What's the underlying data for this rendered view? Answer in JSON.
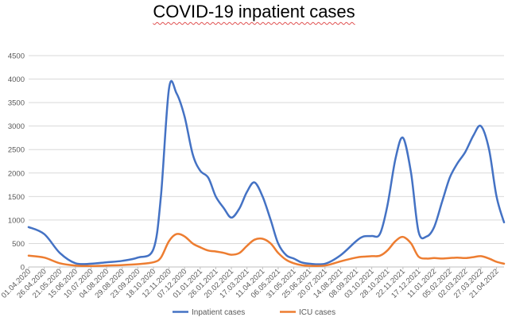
{
  "chart_data": {
    "type": "line",
    "title": "COVID-19 inpatient cases",
    "xlabel": "",
    "ylabel": "",
    "ylim": [
      0,
      4500
    ],
    "yticks": [
      0,
      500,
      1000,
      1500,
      2000,
      2500,
      3000,
      3500,
      4000,
      4500
    ],
    "grid": true,
    "legend_position": "bottom",
    "xticks": [
      "01.04.2020",
      "26.04.2020",
      "21.05.2020",
      "15.06.2020",
      "10.07.2020",
      "04.08.2020",
      "29.08.2020",
      "23.09.2020",
      "18.10.2020",
      "12.11.2020",
      "07.12.2020",
      "01.01.2021",
      "26.01.2021",
      "20.02.2021",
      "17.03.2021",
      "11.04.2021",
      "06.05.2021",
      "31.05.2021",
      "25.06.2021",
      "20.07.2021",
      "14.08.2021",
      "08.09.2021",
      "03.10.2021",
      "28.10.2021",
      "22.11.2021",
      "17.12.2021",
      "11.01.2022",
      "05.02.2022",
      "02.03.2022",
      "27.03.2022",
      "21.04.2022"
    ],
    "x": [
      "01.04.2020",
      "26.04.2020",
      "21.05.2020",
      "15.06.2020",
      "10.07.2020",
      "04.08.2020",
      "29.08.2020",
      "23.09.2020",
      "18.10.2020",
      "30.10.2020",
      "12.11.2020",
      "24.11.2020",
      "07.12.2020",
      "20.12.2020",
      "01.01.2021",
      "14.01.2021",
      "26.01.2021",
      "08.02.2021",
      "20.02.2021",
      "05.03.2021",
      "17.03.2021",
      "29.03.2021",
      "11.04.2021",
      "24.04.2021",
      "06.05.2021",
      "19.05.2021",
      "31.05.2021",
      "12.06.2021",
      "25.06.2021",
      "20.07.2021",
      "14.08.2021",
      "08.09.2021",
      "20.09.2021",
      "03.10.2021",
      "16.10.2021",
      "28.10.2021",
      "10.11.2021",
      "22.11.2021",
      "05.12.2021",
      "17.12.2021",
      "30.12.2021",
      "11.01.2022",
      "24.01.2022",
      "05.02.2022",
      "17.02.2022",
      "02.03.2022",
      "15.03.2022",
      "27.03.2022",
      "09.04.2022",
      "21.04.2022",
      "03.05.2022"
    ],
    "series": [
      {
        "name": "Inpatient cases",
        "color": "#4472c4",
        "values": [
          850,
          700,
          300,
          80,
          70,
          100,
          130,
          200,
          380,
          1500,
          3800,
          3700,
          3200,
          2400,
          2050,
          1900,
          1500,
          1250,
          1050,
          1250,
          1600,
          1800,
          1500,
          1000,
          500,
          250,
          180,
          100,
          70,
          70,
          250,
          550,
          650,
          660,
          700,
          1300,
          2300,
          2750,
          2000,
          750,
          650,
          850,
          1400,
          1900,
          2200,
          2450,
          2800,
          3000,
          2500,
          1500,
          950
        ]
      },
      {
        "name": "ICU cases",
        "color": "#ed7d31",
        "values": [
          240,
          200,
          80,
          30,
          20,
          30,
          40,
          60,
          100,
          200,
          550,
          700,
          650,
          500,
          420,
          350,
          330,
          300,
          260,
          300,
          450,
          580,
          600,
          500,
          300,
          150,
          80,
          40,
          25,
          30,
          120,
          200,
          220,
          230,
          240,
          350,
          550,
          640,
          500,
          220,
          180,
          190,
          180,
          190,
          200,
          190,
          210,
          230,
          180,
          110,
          70
        ]
      }
    ]
  }
}
